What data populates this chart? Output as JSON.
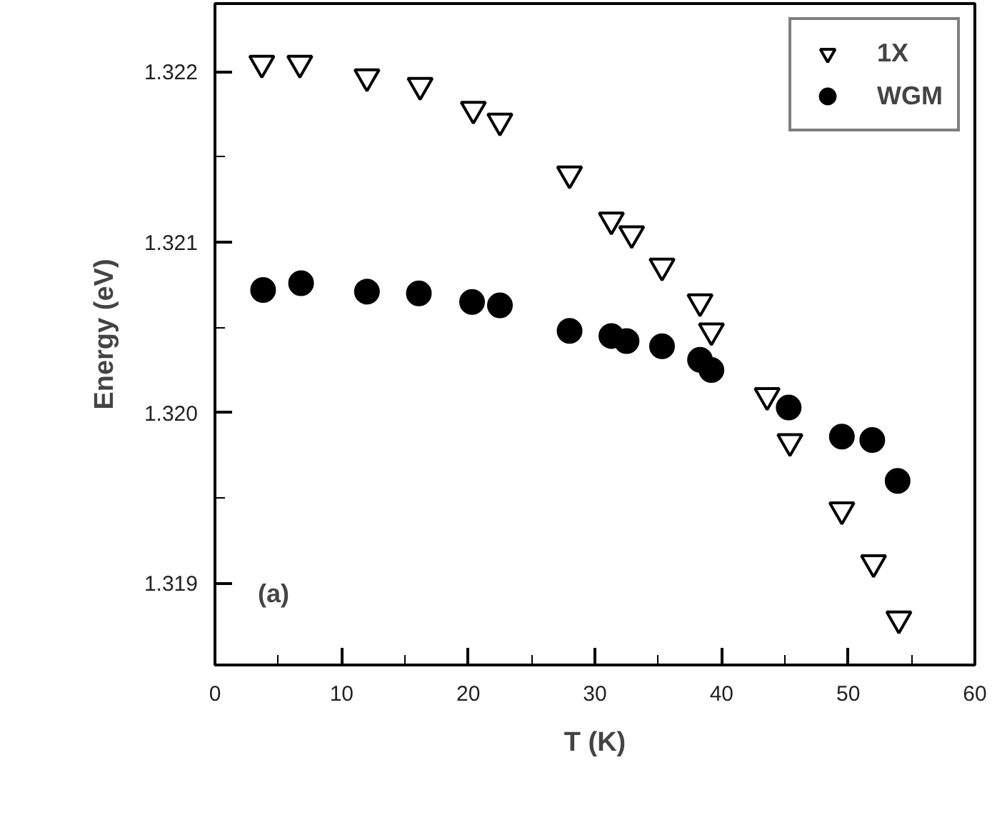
{
  "chart_data": {
    "type": "scatter",
    "xlabel": "T (K)",
    "ylabel": "Energy (eV)",
    "xlim": [
      0,
      60
    ],
    "ylim": [
      1.31852,
      1.3224
    ],
    "xticks": [
      0,
      {
        "value": 5,
        "label": null
      },
      10,
      {
        "value": 15,
        "label": null
      },
      20,
      {
        "value": 25,
        "label": null
      },
      30,
      {
        "value": 35,
        "label": null
      },
      40,
      {
        "value": 45,
        "label": null
      },
      50,
      {
        "value": 55,
        "label": null
      },
      60
    ],
    "yticks": [
      1.319,
      {
        "value": 1.3195,
        "label": null
      },
      {
        "value": 1.32,
        "label": "1.320"
      },
      {
        "value": 1.3205,
        "label": null
      },
      1.321,
      {
        "value": 1.3215,
        "label": null
      },
      1.322
    ],
    "grid": false,
    "legend": "top right",
    "annotations": [
      "(a)"
    ],
    "series": [
      {
        "name": "1X",
        "color": "#000000",
        "marker": "triangle",
        "x": [
          3.7,
          6.7,
          12.0,
          16.2,
          20.4,
          22.5,
          28.0,
          31.3,
          32.9,
          35.3,
          38.3,
          39.2,
          43.6,
          45.4,
          49.5,
          52.0,
          54.0
        ],
        "values": [
          1.32205,
          1.32205,
          1.32197,
          1.32192,
          1.32178,
          1.32171,
          1.3214,
          1.32113,
          1.32105,
          1.32086,
          1.32065,
          1.32048,
          1.3201,
          1.31983,
          1.31943,
          1.31912,
          1.31879
        ]
      },
      {
        "name": "WGM",
        "color": "#000000",
        "marker": "circle",
        "x": [
          3.8,
          6.8,
          12.0,
          16.1,
          20.3,
          22.5,
          28.0,
          31.3,
          32.5,
          35.3,
          38.3,
          39.2,
          45.3,
          49.5,
          51.9,
          53.9
        ],
        "values": [
          1.32072,
          1.32076,
          1.32071,
          1.3207,
          1.32065,
          1.32063,
          1.32048,
          1.32045,
          1.32042,
          1.32039,
          1.32031,
          1.32025,
          1.32003,
          1.31986,
          1.31984,
          1.3196
        ]
      }
    ]
  }
}
